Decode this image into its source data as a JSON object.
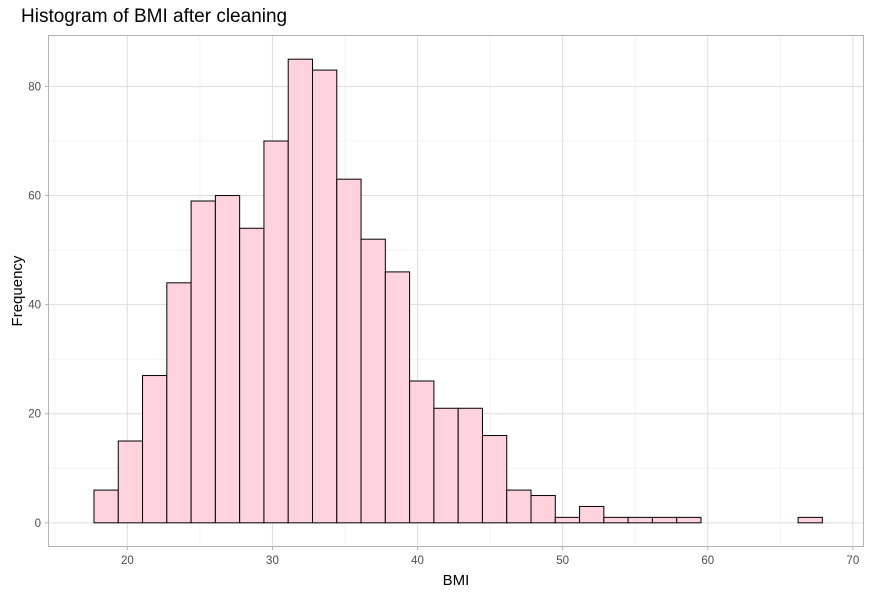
{
  "chart_data": {
    "type": "bar",
    "title": "Histogram of BMI after cleaning",
    "xlabel": "BMI",
    "ylabel": "Frequency",
    "xlim": [
      14.6,
      70.7
    ],
    "ylim": [
      -4.25,
      89.25
    ],
    "x_ticks": [
      20,
      30,
      40,
      50,
      60,
      70
    ],
    "y_ticks": [
      0,
      20,
      40,
      60,
      80
    ],
    "grid": true,
    "fill_color": "#ffd3de",
    "edge_color": "#000000",
    "bin_width": 1.6733,
    "bin_starts": [
      17.7,
      19.3733,
      21.0466,
      22.72,
      24.3933,
      26.0666,
      27.74,
      29.4133,
      31.0866,
      32.76,
      34.4333,
      36.1066,
      37.78,
      39.4533,
      41.1266,
      42.8,
      44.4733,
      46.1466,
      47.82,
      49.4933,
      51.1666,
      52.84,
      54.5133,
      56.1866,
      57.86,
      59.5333,
      61.2066,
      62.88,
      64.5533,
      66.2266
    ],
    "values": [
      6,
      15,
      27,
      44,
      59,
      60,
      54,
      70,
      85,
      83,
      63,
      52,
      46,
      26,
      21,
      21,
      16,
      6,
      5,
      1,
      3,
      1,
      1,
      1,
      1,
      0,
      0,
      0,
      0,
      1
    ]
  }
}
